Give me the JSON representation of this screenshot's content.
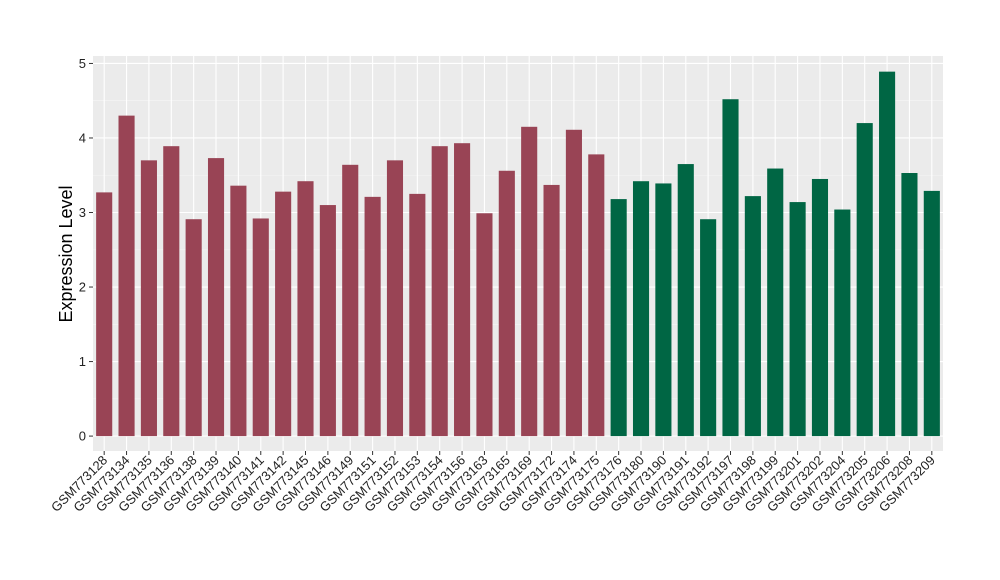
{
  "chart_data": {
    "type": "bar",
    "title": "",
    "xlabel": "",
    "ylabel": "Expression Level",
    "ylim": [
      -0.2,
      5.1
    ],
    "yticks": [
      0,
      1,
      2,
      3,
      4,
      5
    ],
    "grid": true,
    "legend": "none",
    "colors": {
      "group1": "#994455",
      "group2": "#006644",
      "panel_background": "#EBEBEB",
      "grid_major": "#FFFFFF",
      "grid_minor": "#F5F5F5"
    },
    "categories": [
      "GSM773128",
      "GSM773134",
      "GSM773135",
      "GSM773136",
      "GSM773138",
      "GSM773139",
      "GSM773140",
      "GSM773141",
      "GSM773142",
      "GSM773145",
      "GSM773146",
      "GSM773149",
      "GSM773151",
      "GSM773152",
      "GSM773153",
      "GSM773154",
      "GSM773156",
      "GSM773163",
      "GSM773165",
      "GSM773169",
      "GSM773172",
      "GSM773174",
      "GSM773175",
      "GSM773176",
      "GSM773180",
      "GSM773190",
      "GSM773191",
      "GSM773192",
      "GSM773197",
      "GSM773198",
      "GSM773199",
      "GSM773201",
      "GSM773202",
      "GSM773204",
      "GSM773205",
      "GSM773206",
      "GSM773208",
      "GSM773209"
    ],
    "values": [
      3.27,
      4.3,
      3.7,
      3.89,
      2.91,
      3.73,
      3.36,
      2.92,
      3.28,
      3.42,
      3.1,
      3.64,
      3.21,
      3.7,
      3.25,
      3.89,
      3.93,
      2.99,
      3.56,
      4.15,
      3.37,
      4.11,
      3.78,
      3.18,
      3.42,
      3.39,
      3.65,
      2.91,
      4.52,
      3.22,
      3.59,
      3.14,
      3.45,
      3.04,
      4.2,
      4.89,
      3.53,
      3.29
    ],
    "groups": [
      1,
      1,
      1,
      1,
      1,
      1,
      1,
      1,
      1,
      1,
      1,
      1,
      1,
      1,
      1,
      1,
      1,
      1,
      1,
      1,
      1,
      1,
      1,
      2,
      2,
      2,
      2,
      2,
      2,
      2,
      2,
      2,
      2,
      2,
      2,
      2,
      2,
      2
    ]
  }
}
